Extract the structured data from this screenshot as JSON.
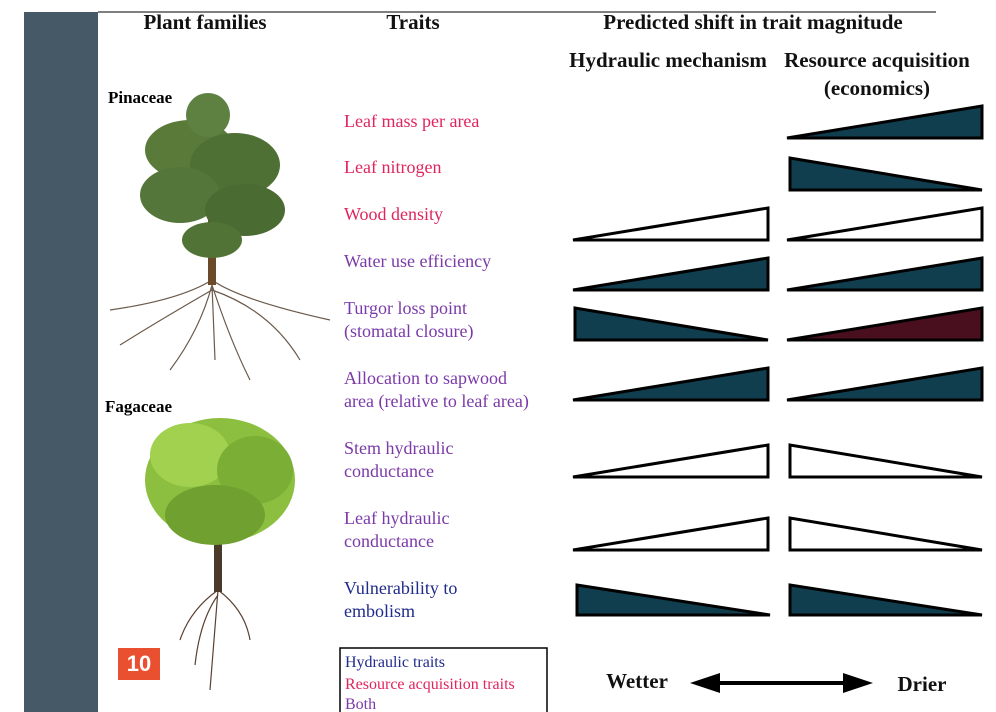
{
  "header": {
    "families": "Plant families",
    "traits": "Traits",
    "shift": "Predicted shift in trait magnitude",
    "hydraulic": "Hydraulic mechanism",
    "resource": [
      "Resource acquisition",
      "(economics)"
    ]
  },
  "families": [
    "Pinaceae",
    "Fagaceae"
  ],
  "traits": [
    {
      "lines": [
        "Leaf mass per area"
      ]
    },
    {
      "lines": [
        "Leaf nitrogen"
      ]
    },
    {
      "lines": [
        "Wood density"
      ]
    },
    {
      "lines": [
        "Water use efficiency"
      ]
    },
    {
      "lines": [
        "Turgor loss point",
        "(stomatal closure)"
      ]
    },
    {
      "lines": [
        "Allocation to sapwood",
        "area (relative to leaf area)"
      ]
    },
    {
      "lines": [
        "Stem hydraulic",
        "conductance"
      ]
    },
    {
      "lines": [
        "Leaf hydraulic",
        "conductance"
      ]
    },
    {
      "lines": [
        "Vulnerability to",
        "embolism"
      ]
    }
  ],
  "legend": [
    "Hydraulic traits",
    "Resource acquisition traits",
    "Both"
  ],
  "axis": {
    "left": "Wetter",
    "right": "Drier"
  },
  "badge": "10"
}
